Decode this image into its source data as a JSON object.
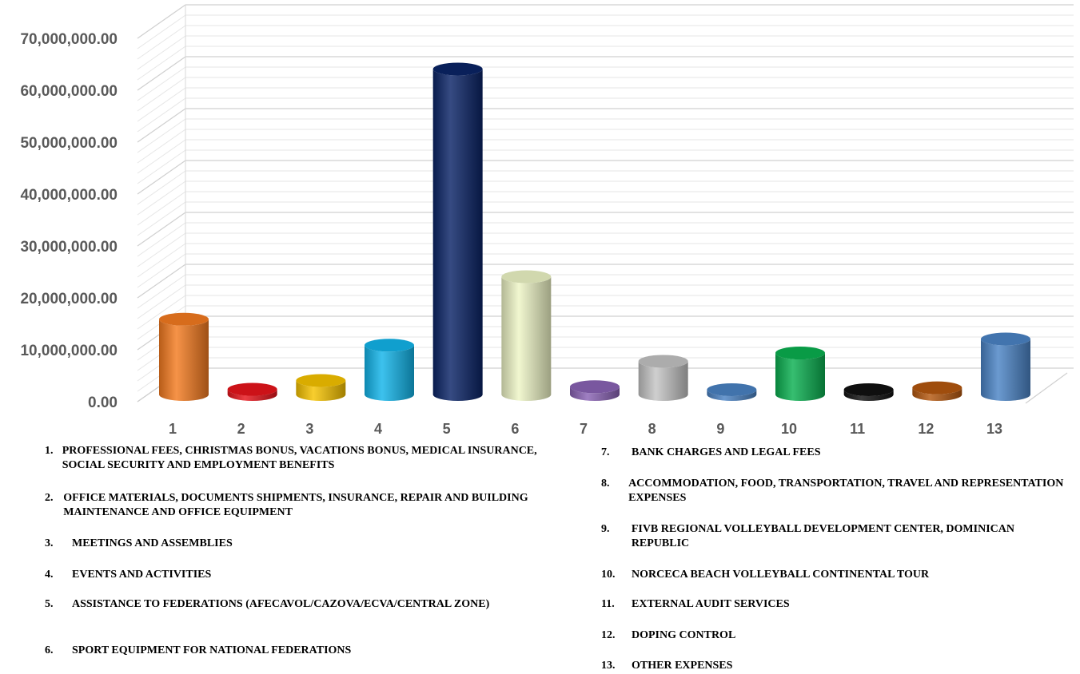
{
  "chart_data": {
    "type": "bar",
    "categories": [
      "1",
      "2",
      "3",
      "4",
      "5",
      "6",
      "7",
      "8",
      "9",
      "10",
      "11",
      "12",
      "13"
    ],
    "values": [
      14800000,
      1300000,
      3000000,
      9800000,
      63000000,
      23000000,
      1800000,
      6700000,
      800000,
      8300000,
      300000,
      1600000,
      11000000
    ],
    "colors": [
      "#f47b20",
      "#e8141b",
      "#f7c300",
      "#12b5ea",
      "#0a2466",
      "#eef5c6",
      "#8a63b5",
      "#c4c4c4",
      "#4a83c4",
      "#0ab050",
      "#111111",
      "#b5580f",
      "#4b84c6"
    ],
    "ylim": [
      0,
      70000000
    ],
    "y_ticks": [
      "0.00",
      "10,000,000.00",
      "20,000,000.00",
      "30,000,000.00",
      "40,000,000.00",
      "50,000,000.00",
      "60,000,000.00",
      "70,000,000.00"
    ],
    "grid": true,
    "legend": [
      {
        "num": "1.",
        "text": "PROFESSIONAL FEES, CHRISTMAS BONUS, VACATIONS BONUS, MEDICAL INSURANCE, SOCIAL SECURITY AND EMPLOYMENT BENEFITS"
      },
      {
        "num": "2.",
        "text": "OFFICE MATERIALS, DOCUMENTS SHIPMENTS, INSURANCE, REPAIR AND BUILDING MAINTENANCE AND OFFICE EQUIPMENT"
      },
      {
        "num": "3.",
        "text": "MEETINGS AND ASSEMBLIES"
      },
      {
        "num": "4.",
        "text": "EVENTS AND ACTIVITIES"
      },
      {
        "num": "5.",
        "text": "ASSISTANCE TO FEDERATIONS (AFECAVOL/CAZOVA/ECVA/CENTRAL ZONE)"
      },
      {
        "num": "6.",
        "text": "SPORT EQUIPMENT FOR NATIONAL FEDERATIONS"
      },
      {
        "num": "7.",
        "text": "BANK CHARGES AND LEGAL FEES"
      },
      {
        "num": "8.",
        "text": "ACCOMMODATION, FOOD, TRANSPORTATION, TRAVEL AND REPRESENTATION EXPENSES"
      },
      {
        "num": "9.",
        "text": "FIVB REGIONAL VOLLEYBALL DEVELOPMENT CENTER, DOMINICAN REPUBLIC"
      },
      {
        "num": "10.",
        "text": "NORCECA BEACH VOLLEYBALL CONTINENTAL TOUR"
      },
      {
        "num": "11.",
        "text": "EXTERNAL AUDIT SERVICES"
      },
      {
        "num": "12.",
        "text": "DOPING CONTROL"
      },
      {
        "num": "13.",
        "text": "OTHER EXPENSES"
      }
    ]
  }
}
